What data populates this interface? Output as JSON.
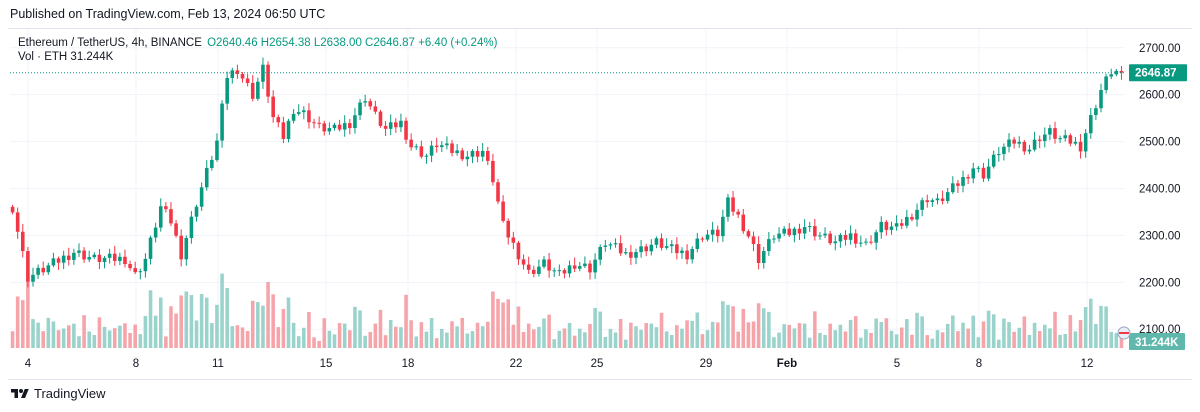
{
  "header": {
    "published": "Published on TradingView.com, Feb 13, 2024 06:50 UTC"
  },
  "legend": {
    "symbol": "Ethereum / TetherUS, 4h, BINANCE",
    "open": "O2640.46",
    "high": "H2654.38",
    "low": "L2638.00",
    "close": "C2646.87",
    "change": "+6.40 (+0.24%)",
    "volume_label": "Vol · ETH",
    "volume_value": "31.244K"
  },
  "footer": {
    "brand": "TradingView"
  },
  "colors": {
    "up": "#089981",
    "down": "#f23645",
    "vol_up": "#9ad3cb",
    "vol_down": "#f5a5aa",
    "grid": "#f0f3fa",
    "text": "#131722"
  },
  "chart_data": {
    "type": "candlestick",
    "symbol": "ETH/USDT",
    "interval": "4h",
    "ylim": [
      2060,
      2740
    ],
    "y_ticks": [
      2100,
      2200,
      2300,
      2400,
      2500,
      2600,
      2700
    ],
    "y_tick_labels": [
      "2100.00",
      "2200.00",
      "2300.00",
      "2400.00",
      "2500.00",
      "2600.00",
      "2700.00"
    ],
    "x_tick_labels": [
      "4",
      "8",
      "11",
      "15",
      "18",
      "22",
      "25",
      "29",
      "Feb",
      "5",
      "8",
      "12"
    ],
    "last_price": 2646.87,
    "last_price_label": "2646.87",
    "volume_label": "31.244K",
    "close_anchors": [
      [
        0,
        2360
      ],
      [
        3,
        2210
      ],
      [
        8,
        2240
      ],
      [
        12,
        2265
      ],
      [
        16,
        2250
      ],
      [
        22,
        2250
      ],
      [
        24,
        2215
      ],
      [
        26,
        2250
      ],
      [
        29,
        2360
      ],
      [
        31,
        2330
      ],
      [
        33,
        2260
      ],
      [
        36,
        2370
      ],
      [
        40,
        2500
      ],
      [
        42,
        2640
      ],
      [
        44,
        2655
      ],
      [
        47,
        2600
      ],
      [
        49,
        2655
      ],
      [
        51,
        2550
      ],
      [
        53,
        2510
      ],
      [
        55,
        2570
      ],
      [
        57,
        2560
      ],
      [
        60,
        2530
      ],
      [
        63,
        2525
      ],
      [
        66,
        2540
      ],
      [
        69,
        2595
      ],
      [
        71,
        2555
      ],
      [
        73,
        2525
      ],
      [
        76,
        2540
      ],
      [
        78,
        2490
      ],
      [
        81,
        2470
      ],
      [
        83,
        2495
      ],
      [
        86,
        2480
      ],
      [
        89,
        2470
      ],
      [
        92,
        2480
      ],
      [
        94,
        2420
      ],
      [
        96,
        2320
      ],
      [
        99,
        2260
      ],
      [
        101,
        2220
      ],
      [
        104,
        2240
      ],
      [
        107,
        2215
      ],
      [
        110,
        2240
      ],
      [
        113,
        2230
      ],
      [
        116,
        2285
      ],
      [
        120,
        2260
      ],
      [
        123,
        2270
      ],
      [
        126,
        2285
      ],
      [
        129,
        2270
      ],
      [
        132,
        2260
      ],
      [
        135,
        2300
      ],
      [
        138,
        2305
      ],
      [
        140,
        2370
      ],
      [
        142,
        2340
      ],
      [
        144,
        2300
      ],
      [
        146,
        2250
      ],
      [
        149,
        2300
      ],
      [
        152,
        2305
      ],
      [
        155,
        2320
      ],
      [
        158,
        2300
      ],
      [
        161,
        2285
      ],
      [
        164,
        2300
      ],
      [
        167,
        2280
      ],
      [
        170,
        2320
      ],
      [
        173,
        2315
      ],
      [
        176,
        2345
      ],
      [
        179,
        2380
      ],
      [
        181,
        2370
      ],
      [
        183,
        2390
      ],
      [
        186,
        2420
      ],
      [
        188,
        2445
      ],
      [
        190,
        2430
      ],
      [
        193,
        2480
      ],
      [
        196,
        2500
      ],
      [
        199,
        2485
      ],
      [
        201,
        2510
      ],
      [
        203,
        2520
      ],
      [
        205,
        2505
      ],
      [
        207,
        2500
      ],
      [
        209,
        2490
      ],
      [
        211,
        2550
      ],
      [
        213,
        2610
      ],
      [
        215,
        2650
      ],
      [
        217,
        2646.87
      ]
    ]
  }
}
